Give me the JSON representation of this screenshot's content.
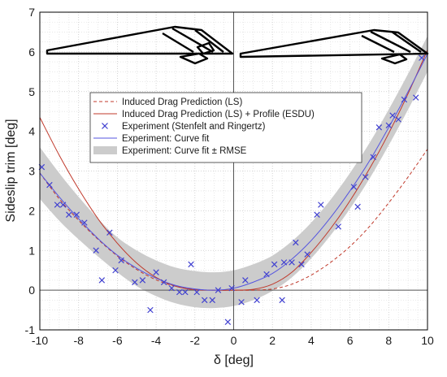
{
  "chart_data": {
    "type": "line",
    "xlabel": "δ [deg]",
    "ylabel": "Sideslip trim [deg]",
    "xlim": [
      -10,
      10
    ],
    "ylim": [
      -1,
      7
    ],
    "xticks": [
      -10,
      -8,
      -6,
      -4,
      -2,
      0,
      2,
      4,
      6,
      8,
      10
    ],
    "yticks": [
      -1,
      0,
      1,
      2,
      3,
      4,
      5,
      6,
      7
    ],
    "grid": "dotted minor grid",
    "legend_position": "upper-left",
    "series": [
      {
        "name": "Induced Drag Prediction (LS)",
        "kind": "line",
        "style": "dashed",
        "color": "#c0392b",
        "x": [
          -10,
          -9,
          -8,
          -7,
          -6,
          -5,
          -4,
          -3,
          -2,
          -1,
          0,
          1,
          2,
          3,
          4,
          5,
          6,
          7,
          8,
          9,
          10
        ],
        "y": [
          2.95,
          2.3,
          1.76,
          1.28,
          0.86,
          0.52,
          0.26,
          0.1,
          0.02,
          0.0,
          0.0,
          0.0,
          0.03,
          0.15,
          0.38,
          0.7,
          1.1,
          1.6,
          2.2,
          2.85,
          3.55
        ]
      },
      {
        "name": "Induced Drag Prediction (LS) + Profile (ESDU)",
        "kind": "line",
        "style": "solid",
        "color": "#c0392b",
        "x": [
          -10,
          -9,
          -8,
          -7,
          -6,
          -5,
          -4,
          -3,
          -2,
          -1,
          0,
          1,
          2,
          3,
          4,
          5,
          6,
          7,
          8,
          9,
          10
        ],
        "y": [
          4.35,
          3.4,
          2.55,
          1.8,
          1.18,
          0.68,
          0.32,
          0.1,
          0.01,
          0.0,
          0.0,
          0.02,
          0.15,
          0.45,
          0.95,
          1.55,
          2.25,
          3.05,
          3.95,
          4.95,
          6.05
        ]
      },
      {
        "name": "Experiment (Stenfelt and Ringertz)",
        "kind": "scatter",
        "marker": "x",
        "color": "#4040d0",
        "x": [
          -9.9,
          -9.5,
          -9.1,
          -8.8,
          -8.5,
          -8.1,
          -7.7,
          -7.1,
          -6.8,
          -6.4,
          -6.1,
          -5.8,
          -5.1,
          -4.7,
          -4.3,
          -4.0,
          -3.6,
          -3.2,
          -2.8,
          -2.5,
          -2.2,
          -1.9,
          -1.5,
          -1.1,
          -0.8,
          -0.3,
          -0.1,
          0.4,
          0.6,
          1.2,
          1.7,
          2.1,
          2.5,
          2.6,
          3.0,
          3.2,
          3.5,
          3.8,
          4.3,
          4.5,
          5.4,
          6.2,
          6.4,
          6.8,
          7.2,
          7.5,
          8.0,
          8.2,
          8.5,
          8.8,
          9.4,
          9.7
        ],
        "y": [
          3.1,
          2.65,
          2.15,
          2.15,
          1.9,
          1.9,
          1.7,
          1.0,
          0.25,
          1.45,
          0.5,
          0.75,
          0.2,
          0.25,
          -0.5,
          0.45,
          0.2,
          0.05,
          -0.05,
          -0.05,
          0.65,
          -0.05,
          -0.25,
          -0.25,
          0.0,
          -0.8,
          0.05,
          -0.3,
          0.25,
          -0.25,
          0.4,
          0.65,
          -0.25,
          0.7,
          0.7,
          1.2,
          0.65,
          0.9,
          1.9,
          2.15,
          1.6,
          2.6,
          2.1,
          2.85,
          3.35,
          4.1,
          4.15,
          4.4,
          4.3,
          4.8,
          4.85,
          5.85
        ]
      },
      {
        "name": "Experiment: Curve fit",
        "kind": "line",
        "style": "solid",
        "color": "#5555e0",
        "x": [
          -10,
          -9,
          -8,
          -7,
          -6,
          -5,
          -4,
          -3,
          -2,
          -1,
          0,
          1,
          2,
          3,
          4,
          5,
          6,
          7,
          8,
          9,
          10
        ],
        "y": [
          2.95,
          2.35,
          1.8,
          1.3,
          0.88,
          0.55,
          0.3,
          0.12,
          0.03,
          0.0,
          0.05,
          0.2,
          0.42,
          0.78,
          1.25,
          1.83,
          2.5,
          3.25,
          4.1,
          5.0,
          5.95
        ]
      },
      {
        "name": "Experiment: Curve fit ± RMSE",
        "kind": "band",
        "color": "#cccccc",
        "x": [
          -10,
          -9,
          -8,
          -7,
          -6,
          -5,
          -4,
          -3,
          -2,
          -1,
          0,
          1,
          2,
          3,
          4,
          5,
          6,
          7,
          8,
          9,
          10
        ],
        "y_lower": [
          2.3,
          1.75,
          1.28,
          0.85,
          0.45,
          0.1,
          -0.15,
          -0.33,
          -0.43,
          -0.45,
          -0.4,
          -0.25,
          -0.02,
          0.32,
          0.8,
          1.38,
          2.05,
          2.8,
          3.65,
          4.55,
          5.5
        ],
        "y_upper": [
          3.6,
          2.95,
          2.35,
          1.8,
          1.33,
          1.0,
          0.75,
          0.57,
          0.48,
          0.45,
          0.5,
          0.65,
          0.87,
          1.23,
          1.7,
          2.28,
          2.95,
          3.7,
          4.55,
          5.45,
          6.4
        ]
      }
    ]
  }
}
